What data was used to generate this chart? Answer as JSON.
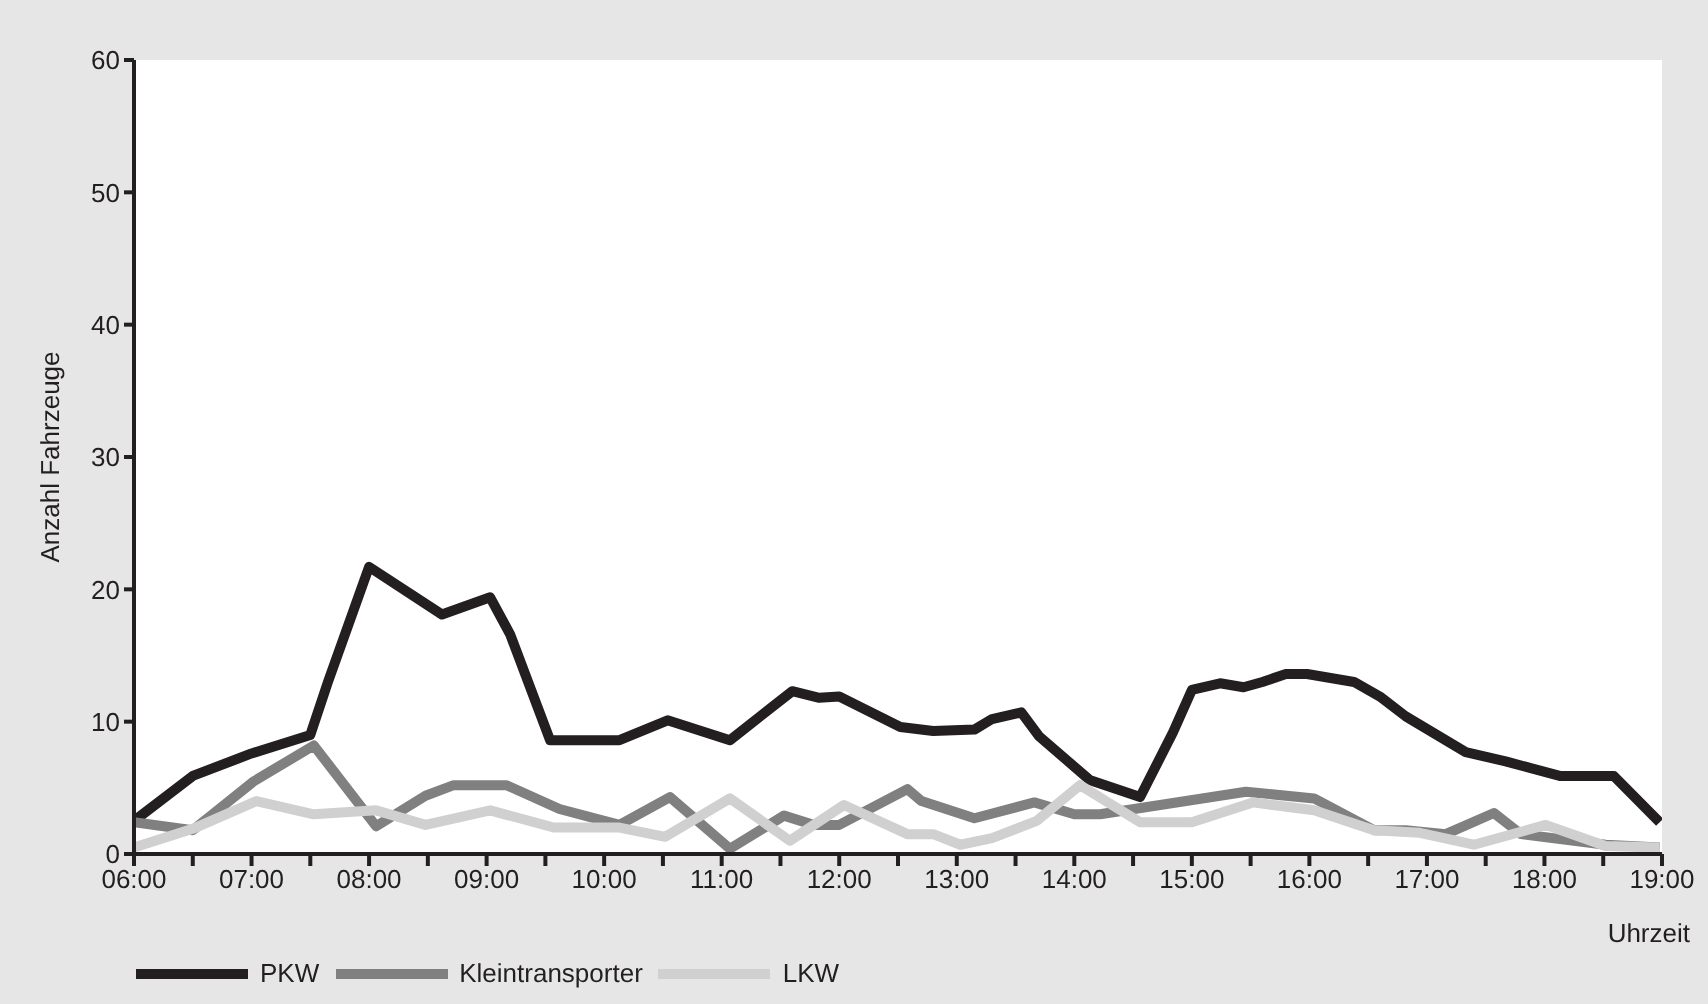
{
  "chart_data": {
    "type": "line",
    "xlabel": "Uhrzeit",
    "ylabel": "Anzahl Fahrzeuge",
    "xlim": [
      6,
      19
    ],
    "ylim": [
      0,
      60
    ],
    "yticks": [
      0,
      10,
      20,
      30,
      40,
      50,
      60
    ],
    "xticks": [
      {
        "value": 6,
        "label": "06:00"
      },
      {
        "value": 6.5,
        "label": null
      },
      {
        "value": 7,
        "label": "07:00"
      },
      {
        "value": 7.5,
        "label": null
      },
      {
        "value": 8,
        "label": "08:00"
      },
      {
        "value": 8.5,
        "label": null
      },
      {
        "value": 9,
        "label": "09:00"
      },
      {
        "value": 9.5,
        "label": null
      },
      {
        "value": 10,
        "label": "10:00"
      },
      {
        "value": 10.5,
        "label": null
      },
      {
        "value": 11,
        "label": "11:00"
      },
      {
        "value": 11.5,
        "label": null
      },
      {
        "value": 12,
        "label": "12:00"
      },
      {
        "value": 12.5,
        "label": null
      },
      {
        "value": 13,
        "label": "13:00"
      },
      {
        "value": 13.5,
        "label": null
      },
      {
        "value": 14,
        "label": "14:00"
      },
      {
        "value": 14.5,
        "label": null
      },
      {
        "value": 15,
        "label": "15:00"
      },
      {
        "value": 15.5,
        "label": null
      },
      {
        "value": 16,
        "label": "16:00"
      },
      {
        "value": 16.5,
        "label": null
      },
      {
        "value": 17,
        "label": "17:00"
      },
      {
        "value": 17.5,
        "label": null
      },
      {
        "value": 18,
        "label": "18:00"
      },
      {
        "value": 18.5,
        "label": null
      },
      {
        "value": 19,
        "label": "19:00"
      }
    ],
    "legend": "bottom",
    "grid": false,
    "marker": "none",
    "line_style": "solid",
    "series": [
      {
        "name": "PKW",
        "color": "#231f20",
        "x": [
          6.0,
          6.5,
          7.0,
          7.5,
          7.65,
          8.0,
          8.62,
          9.03,
          9.2,
          9.54,
          10.13,
          10.54,
          11.07,
          11.6,
          11.83,
          12.0,
          12.52,
          12.8,
          13.15,
          13.3,
          13.55,
          13.7,
          14.13,
          14.56,
          14.84,
          15.0,
          15.24,
          15.44,
          15.6,
          15.8,
          15.98,
          16.38,
          16.6,
          16.82,
          17.33,
          17.67,
          18.13,
          18.59,
          18.98
        ],
        "values": [
          2.5,
          5.9,
          7.6,
          9.0,
          13,
          21.7,
          18.1,
          19.4,
          16.6,
          8.6,
          8.6,
          10.1,
          8.6,
          12.3,
          11.8,
          11.9,
          9.6,
          9.3,
          9.4,
          10.2,
          10.7,
          8.9,
          5.6,
          4.3,
          9.2,
          12.4,
          12.9,
          12.6,
          13.0,
          13.6,
          13.6,
          13.0,
          11.9,
          10.4,
          7.7,
          7.0,
          5.9,
          5.9,
          2.4
        ]
      },
      {
        "name": "Kleintransporter",
        "color": "#808080",
        "x": [
          6.0,
          6.5,
          7.02,
          7.53,
          8.06,
          8.48,
          8.72,
          9.17,
          9.62,
          10.13,
          10.56,
          11.07,
          11.53,
          11.78,
          12.0,
          12.58,
          12.7,
          13.15,
          13.66,
          14.0,
          14.22,
          15.46,
          16.04,
          16.55,
          16.82,
          17.16,
          17.57,
          17.8,
          18.52,
          18.98
        ],
        "values": [
          2.4,
          1.8,
          5.5,
          8.2,
          2.1,
          4.4,
          5.2,
          5.2,
          3.4,
          2.2,
          4.3,
          0.4,
          2.9,
          2.2,
          2.2,
          4.9,
          4.0,
          2.7,
          3.9,
          3.0,
          3.0,
          4.7,
          4.2,
          1.8,
          1.8,
          1.5,
          3.1,
          1.5,
          0.7,
          0.5
        ]
      },
      {
        "name": "LKW",
        "color": "#d0d0d0",
        "x": [
          6.0,
          6.5,
          7.04,
          7.53,
          8.06,
          8.48,
          9.03,
          9.57,
          10.13,
          10.52,
          11.07,
          11.58,
          12.04,
          12.58,
          12.8,
          13.03,
          13.3,
          13.68,
          14.05,
          14.56,
          15.0,
          15.52,
          16.04,
          16.55,
          16.94,
          17.4,
          18.01,
          18.52,
          18.98
        ],
        "values": [
          0.5,
          1.9,
          4.0,
          3.0,
          3.3,
          2.2,
          3.3,
          2.0,
          2.0,
          1.3,
          4.2,
          1.0,
          3.7,
          1.5,
          1.5,
          0.7,
          1.2,
          2.5,
          5.2,
          2.4,
          2.4,
          3.9,
          3.3,
          1.8,
          1.6,
          0.7,
          2.2,
          0.6,
          0.5
        ]
      }
    ]
  }
}
